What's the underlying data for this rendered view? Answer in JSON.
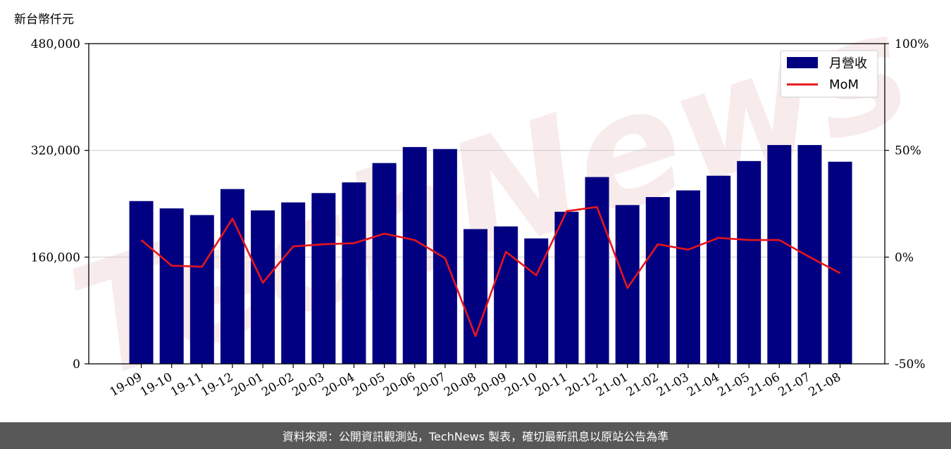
{
  "watermark": "TechNews",
  "footer": {
    "source_note": "資料來源：公開資訊觀測站，TechNews 製表，確切最新訊息以原站公告為準"
  },
  "colors": {
    "bar": "#000080",
    "line": "#e8141c",
    "grid": "#d0d0d0",
    "footer_bg": "#585858"
  },
  "chart_data": {
    "type": "bar",
    "unit_label": "新台幣仟元",
    "categories": [
      "19-09",
      "19-10",
      "19-11",
      "19-12",
      "20-01",
      "20-02",
      "20-03",
      "20-04",
      "20-05",
      "20-06",
      "20-07",
      "20-08",
      "20-09",
      "20-10",
      "20-11",
      "20-12",
      "21-01",
      "21-02",
      "21-03",
      "21-04",
      "21-05",
      "21-06",
      "21-07",
      "21-08"
    ],
    "series": [
      {
        "name": "月營收",
        "type": "bar",
        "axis": "left",
        "values": [
          244000,
          233000,
          223000,
          262000,
          230000,
          242000,
          256000,
          272000,
          301000,
          325000,
          322000,
          202000,
          206000,
          188000,
          228000,
          280000,
          238000,
          250000,
          260000,
          282000,
          304000,
          328000,
          328000,
          303000
        ]
      },
      {
        "name": "MoM",
        "type": "line",
        "axis": "right",
        "values": [
          8,
          -4,
          -4.5,
          18,
          -12,
          5,
          6,
          6.5,
          11,
          8,
          -0.5,
          -37,
          2.5,
          -8.5,
          21.5,
          23.5,
          -14.5,
          6,
          3.5,
          9,
          8,
          8,
          0,
          -7.5
        ]
      }
    ],
    "y_left": {
      "lim": [
        0,
        480000
      ],
      "ticks": [
        "0",
        "160,000",
        "320,000",
        "480,000"
      ],
      "tick_values": [
        0,
        160000,
        320000,
        480000
      ]
    },
    "y_right": {
      "lim": [
        -50,
        100
      ],
      "ticks": [
        "-50%",
        "0%",
        "50%",
        "100%"
      ],
      "tick_values": [
        -50,
        0,
        50,
        100
      ]
    },
    "grid": "horizontal",
    "legend_position": "top-right"
  }
}
